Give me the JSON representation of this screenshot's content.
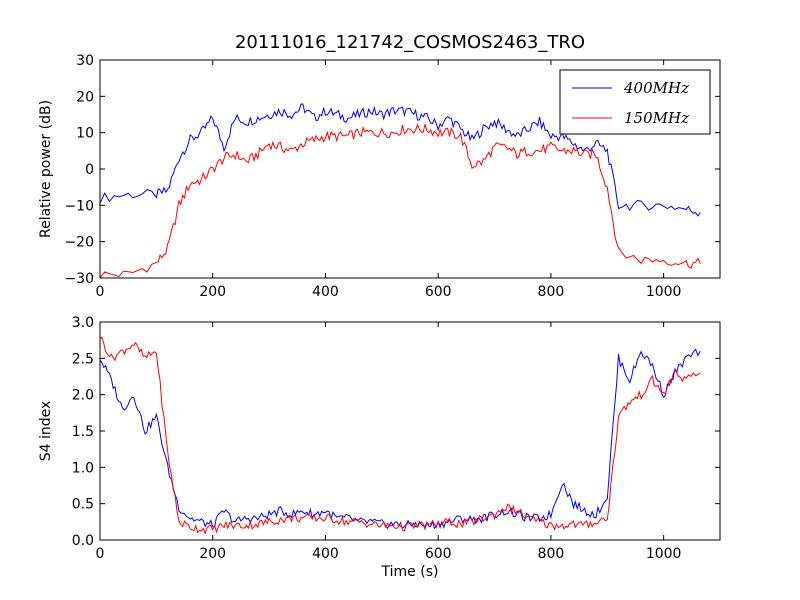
{
  "figure_title": "20111016_121742_COSMOS2463_TRO",
  "colors": {
    "blue": "#0000ff",
    "red": "#ff0000"
  },
  "chart_data": [
    {
      "type": "line",
      "title": "20111016_121742_COSMOS2463_TRO",
      "xlabel": "",
      "ylabel": "Relative power (dB)",
      "xlim": [
        0,
        1100
      ],
      "ylim": [
        -30,
        30
      ],
      "xticks": [
        "0",
        "200",
        "400",
        "600",
        "800",
        "1000"
      ],
      "yticks": [
        "−30",
        "−20",
        "−10",
        "0",
        "10",
        "20",
        "30"
      ],
      "legend_position": "top-right",
      "series": [
        {
          "name": "400MHz",
          "color": "#0000ff",
          "x": [
            0,
            50,
            100,
            120,
            140,
            160,
            180,
            200,
            220,
            240,
            260,
            280,
            300,
            320,
            340,
            360,
            380,
            400,
            420,
            440,
            460,
            480,
            500,
            520,
            540,
            560,
            580,
            600,
            620,
            640,
            660,
            680,
            700,
            720,
            740,
            760,
            780,
            800,
            820,
            840,
            860,
            880,
            900,
            920,
            960,
            1000,
            1040,
            1065
          ],
          "y": [
            -8,
            -7,
            -7,
            -6,
            3,
            8,
            10,
            14,
            6,
            14,
            13,
            14,
            15,
            16,
            15,
            17,
            14,
            16,
            15,
            14,
            15,
            16,
            15,
            16,
            16,
            15,
            14,
            12,
            14,
            11,
            8,
            11,
            13,
            11,
            9,
            11,
            13,
            9,
            9,
            7,
            5,
            7,
            5,
            -10,
            -10,
            -10,
            -11,
            -12
          ]
        },
        {
          "name": "150MHz",
          "color": "#ff0000",
          "x": [
            0,
            50,
            100,
            120,
            140,
            160,
            180,
            200,
            220,
            240,
            260,
            280,
            300,
            320,
            340,
            360,
            380,
            400,
            420,
            440,
            460,
            480,
            500,
            520,
            540,
            560,
            580,
            600,
            620,
            640,
            660,
            680,
            700,
            720,
            740,
            760,
            780,
            800,
            820,
            840,
            860,
            880,
            900,
            920,
            960,
            1000,
            1040,
            1065
          ],
          "y": [
            -29,
            -29,
            -26,
            -22,
            -10,
            -4,
            -3,
            0,
            3,
            4,
            2,
            4,
            7,
            6,
            5,
            7,
            8,
            9,
            9,
            9,
            10,
            10,
            10,
            10,
            11,
            11,
            11,
            10,
            10,
            9,
            1,
            2,
            6,
            6,
            4,
            5,
            5,
            6,
            5,
            5,
            4,
            4,
            -5,
            -23,
            -25,
            -25,
            -26,
            -26
          ]
        }
      ]
    },
    {
      "type": "line",
      "title": "",
      "xlabel": "Time (s)",
      "ylabel": "S4 index",
      "xlim": [
        0,
        1100
      ],
      "ylim": [
        0,
        3
      ],
      "xticks": [
        "0",
        "200",
        "400",
        "600",
        "800",
        "1000"
      ],
      "yticks": [
        "0.0",
        "0.5",
        "1.0",
        "1.5",
        "2.0",
        "2.5",
        "3.0"
      ],
      "series": [
        {
          "name": "400MHz",
          "color": "#0000ff",
          "x": [
            0,
            20,
            40,
            60,
            80,
            100,
            120,
            140,
            160,
            180,
            200,
            220,
            240,
            260,
            280,
            300,
            320,
            340,
            360,
            380,
            400,
            420,
            440,
            460,
            480,
            500,
            520,
            540,
            560,
            580,
            600,
            620,
            640,
            660,
            680,
            700,
            720,
            740,
            760,
            780,
            800,
            820,
            840,
            860,
            880,
            900,
            920,
            940,
            960,
            980,
            1000,
            1020,
            1040,
            1065
          ],
          "y": [
            2.5,
            2.2,
            1.8,
            2.0,
            1.5,
            1.7,
            1.0,
            0.45,
            0.3,
            0.25,
            0.2,
            0.4,
            0.25,
            0.3,
            0.3,
            0.35,
            0.4,
            0.35,
            0.4,
            0.35,
            0.4,
            0.3,
            0.3,
            0.25,
            0.25,
            0.22,
            0.22,
            0.2,
            0.22,
            0.2,
            0.22,
            0.25,
            0.3,
            0.28,
            0.3,
            0.35,
            0.4,
            0.35,
            0.3,
            0.3,
            0.35,
            0.8,
            0.5,
            0.4,
            0.35,
            0.6,
            2.5,
            2.2,
            2.6,
            2.4,
            2.0,
            2.3,
            2.5,
            2.6
          ]
        },
        {
          "name": "150MHz",
          "color": "#ff0000",
          "x": [
            0,
            20,
            40,
            60,
            80,
            100,
            120,
            140,
            160,
            180,
            200,
            220,
            240,
            260,
            280,
            300,
            320,
            340,
            360,
            380,
            400,
            420,
            440,
            460,
            480,
            500,
            520,
            540,
            560,
            580,
            600,
            620,
            640,
            660,
            680,
            700,
            720,
            740,
            760,
            780,
            800,
            820,
            840,
            860,
            880,
            900,
            920,
            940,
            960,
            980,
            1000,
            1020,
            1040,
            1065
          ],
          "y": [
            2.8,
            2.5,
            2.6,
            2.7,
            2.5,
            2.6,
            1.2,
            0.25,
            0.18,
            0.15,
            0.15,
            0.2,
            0.2,
            0.2,
            0.22,
            0.25,
            0.28,
            0.3,
            0.3,
            0.3,
            0.3,
            0.28,
            0.25,
            0.25,
            0.22,
            0.2,
            0.2,
            0.18,
            0.2,
            0.2,
            0.22,
            0.25,
            0.22,
            0.25,
            0.3,
            0.35,
            0.45,
            0.4,
            0.3,
            0.25,
            0.2,
            0.2,
            0.22,
            0.2,
            0.25,
            0.3,
            1.7,
            1.9,
            2.0,
            2.2,
            2.0,
            2.3,
            2.2,
            2.3
          ]
        }
      ]
    }
  ]
}
